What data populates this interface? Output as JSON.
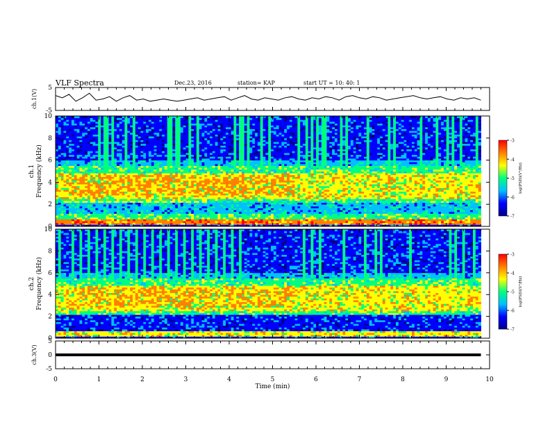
{
  "header": {
    "title": "VLF Spectra",
    "date": "Dec.23, 2016",
    "station": "station= KAP",
    "start_ut": "start  UT =   10: 40: 1"
  },
  "chart_data": [
    {
      "type": "line",
      "ylabel": "ch.1(V)",
      "ylim": [
        -5,
        5
      ],
      "ytick_labels": [
        "5",
        "-5"
      ],
      "series": [
        {
          "values": [
            1.5,
            0.5,
            2.0,
            -1.0,
            0.5,
            2.5,
            -0.5,
            0.0,
            1.0,
            -1.0,
            0.5,
            1.5,
            -0.5,
            0.0,
            -1.0,
            -0.5,
            0.0,
            -0.5,
            -1.0,
            -0.5,
            0.0,
            0.5,
            -0.5,
            0.0,
            0.5,
            1.0,
            -0.5,
            0.5,
            1.5,
            0.0,
            -0.5,
            0.5,
            0.0,
            -0.5,
            0.5,
            1.0,
            0.0,
            -0.5,
            0.5,
            0.0,
            1.0,
            0.5,
            -0.5,
            1.0,
            1.5,
            0.5,
            0.0,
            1.0,
            0.5,
            -0.5,
            0.0,
            0.5,
            1.0,
            1.5,
            0.5,
            0.0,
            0.5,
            1.0,
            0.0,
            -0.5,
            0.5,
            0.0,
            0.5,
            -0.5
          ]
        }
      ]
    },
    {
      "type": "heatmap",
      "ylabel": "ch.1\nFrequency (kHz)",
      "ylim": [
        0,
        10
      ],
      "ytick_labels": [
        "0",
        "2",
        "4",
        "6",
        "8",
        "10"
      ],
      "colorbar": {
        "label": "log(PSD)(V²/Hz)",
        "range": [
          -7,
          -3
        ],
        "tick_labels": [
          "-3",
          "-4",
          "-5",
          "-6",
          "-7"
        ]
      }
    },
    {
      "type": "heatmap",
      "ylabel": "ch.2\nFrequency (kHz)",
      "ylim": [
        0,
        10
      ],
      "ytick_labels": [
        "0",
        "2",
        "4",
        "6",
        "8",
        "10"
      ],
      "colorbar": {
        "label": "log(PSD)(V²/Hz)",
        "range": [
          -7,
          -3
        ],
        "tick_labels": [
          "-3",
          "-4",
          "-5",
          "-6",
          "-7"
        ]
      }
    },
    {
      "type": "line",
      "ylabel": "ch.3(V)",
      "ylim": [
        -5,
        5
      ],
      "ytick_labels": [
        "5",
        "0",
        "-5"
      ],
      "series": [
        {
          "values": [
            0,
            0
          ]
        }
      ]
    }
  ],
  "xaxis": {
    "label": "Time (min)",
    "range": [
      0,
      10
    ],
    "tick_labels": [
      "0",
      "1",
      "2",
      "3",
      "4",
      "5",
      "6",
      "7",
      "8",
      "9",
      "10"
    ]
  },
  "colors": {
    "colormap": [
      "#00008b",
      "#0000ff",
      "#00c0ff",
      "#00ff80",
      "#ffff00",
      "#ff8000",
      "#ff0000"
    ],
    "line": "#000000"
  }
}
